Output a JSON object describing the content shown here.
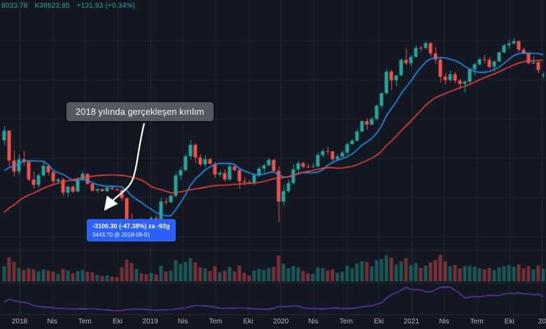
{
  "legend": {
    "open": "8033.78",
    "close": "K38623.85",
    "change": "+131.93 (+0.34%)"
  },
  "annotation": {
    "text": "2018 yılında gerçekleşen kırılım"
  },
  "tooltip": {
    "line1": "-3100.30 (-47.38%) za -92g",
    "line2": "3443.70 @ 2018-08-01"
  },
  "colors": {
    "background": "#131722",
    "candle_up": "#26a69a",
    "candle_down": "#ef5350",
    "ma_fast": "#2196f3",
    "ma_slow": "#f44336",
    "indicator": "#673ab7",
    "volume_up": "rgba(38,166,154,0.45)",
    "volume_down": "rgba(239,83,80,0.45)",
    "grid": "rgba(255,255,255,0.05)",
    "grid_year": "rgba(255,255,255,0.09)",
    "separator": "#232838",
    "axis_text": "#b2b5be",
    "legend_text": "#26a69a",
    "tooltip_bg": "#2962ff",
    "callout_bg": "#56595f"
  },
  "chart_data": {
    "type": "candlestick",
    "title": "",
    "log_scale": true,
    "price_range": [
      3000,
      85000
    ],
    "x_labels": [
      "2018",
      "Nis",
      "Tem",
      "Eki",
      "2019",
      "Nis",
      "Tem",
      "Eki",
      "2020",
      "Nis",
      "Tem",
      "Eki",
      "2021",
      "Nis",
      "Tem",
      "Eki",
      "20"
    ],
    "moving_averages": [
      {
        "name": "fast-ma",
        "window": 10,
        "color": "#2196f3"
      },
      {
        "name": "slow-ma",
        "window": 30,
        "color": "#f44336"
      }
    ],
    "indicator": {
      "name": "range-oscillator",
      "window": 5,
      "color": "#673ab7"
    },
    "pre_closes": [
      750,
      800,
      900,
      950,
      1000,
      1080,
      1200,
      1300,
      1600,
      1900,
      2300,
      2500,
      2400,
      2600,
      2800,
      3400,
      4100,
      4300,
      4200,
      4400,
      4800,
      5600,
      6400,
      7200,
      5800,
      6600,
      7300,
      8100,
      9900,
      13000
    ],
    "candles": [
      [
        13850,
        17250,
        12800,
        16100,
        55
      ],
      [
        16100,
        16300,
        9300,
        10100,
        88
      ],
      [
        10100,
        11800,
        7900,
        8500,
        72
      ],
      [
        8500,
        11100,
        8100,
        10300,
        50
      ],
      [
        10300,
        11700,
        9300,
        9900,
        42
      ],
      [
        9900,
        10000,
        7300,
        7500,
        48
      ],
      [
        7500,
        8500,
        6500,
        6900,
        45
      ],
      [
        6900,
        8200,
        6600,
        8000,
        38
      ],
      [
        8000,
        9800,
        7800,
        9300,
        44
      ],
      [
        9300,
        9400,
        8000,
        8400,
        40
      ],
      [
        8400,
        8500,
        7000,
        7300,
        36
      ],
      [
        7300,
        7700,
        7000,
        7500,
        28
      ],
      [
        7500,
        7700,
        5800,
        6100,
        46
      ],
      [
        6100,
        6800,
        5700,
        6700,
        40
      ],
      [
        6700,
        6850,
        6050,
        6200,
        30
      ],
      [
        6200,
        7750,
        6150,
        7500,
        38
      ],
      [
        7500,
        8500,
        7300,
        8200,
        42
      ],
      [
        8200,
        8250,
        6900,
        7000,
        36
      ],
      [
        7000,
        7150,
        6200,
        6300,
        34
      ],
      [
        6300,
        6550,
        6100,
        6450,
        24
      ],
      [
        6450,
        6500,
        6200,
        6250,
        20
      ],
      [
        6250,
        6800,
        6200,
        6600,
        22
      ],
      [
        6600,
        6650,
        6400,
        6450,
        18
      ],
      [
        6450,
        6550,
        6300,
        6350,
        16
      ],
      [
        6350,
        6500,
        5350,
        5600,
        52
      ],
      [
        5600,
        5650,
        3650,
        3850,
        80
      ],
      [
        3850,
        4400,
        3150,
        3250,
        68
      ],
      [
        3250,
        4000,
        3150,
        3850,
        46
      ],
      [
        3850,
        4100,
        3600,
        3700,
        30
      ],
      [
        3700,
        3750,
        3350,
        3450,
        26
      ],
      [
        3450,
        4200,
        3400,
        4100,
        32
      ],
      [
        4100,
        4300,
        3900,
        4000,
        26
      ],
      [
        4000,
        5650,
        3950,
        5300,
        58
      ],
      [
        5300,
        5600,
        5050,
        5250,
        36
      ],
      [
        5250,
        6000,
        5200,
        5800,
        40
      ],
      [
        5800,
        8350,
        5700,
        8000,
        78
      ],
      [
        8000,
        9100,
        7500,
        8700,
        64
      ],
      [
        8700,
        11200,
        8500,
        10800,
        72
      ],
      [
        10800,
        13900,
        10300,
        12900,
        85
      ],
      [
        12900,
        13200,
        9700,
        10600,
        70
      ],
      [
        10600,
        11100,
        9200,
        9500,
        52
      ],
      [
        9500,
        10950,
        9100,
        10300,
        48
      ],
      [
        10300,
        10500,
        9400,
        9600,
        38
      ],
      [
        9600,
        9900,
        7700,
        8100,
        56
      ],
      [
        8100,
        8600,
        7800,
        8300,
        34
      ],
      [
        8300,
        8800,
        7300,
        7500,
        40
      ],
      [
        7500,
        9600,
        7350,
        9200,
        54
      ],
      [
        9200,
        9550,
        8500,
        8700,
        36
      ],
      [
        8700,
        8800,
        6500,
        7300,
        58
      ],
      [
        7300,
        7700,
        6850,
        7200,
        32
      ],
      [
        7200,
        7450,
        7050,
        7150,
        22
      ],
      [
        7150,
        8200,
        6850,
        8000,
        40
      ],
      [
        8000,
        9200,
        7800,
        8900,
        46
      ],
      [
        8900,
        9600,
        8200,
        9350,
        42
      ],
      [
        9350,
        10500,
        9300,
        10200,
        50
      ],
      [
        10200,
        10300,
        8400,
        8600,
        54
      ],
      [
        8600,
        9200,
        3850,
        5300,
        95
      ],
      [
        5300,
        6900,
        5000,
        6250,
        66
      ],
      [
        6250,
        7500,
        6100,
        7100,
        48
      ],
      [
        7100,
        9500,
        6900,
        8800,
        56
      ],
      [
        8800,
        10000,
        8100,
        9700,
        52
      ],
      [
        9700,
        9900,
        8900,
        9150,
        38
      ],
      [
        9150,
        9600,
        8950,
        9100,
        30
      ],
      [
        9100,
        9700,
        9000,
        9200,
        28
      ],
      [
        9200,
        11400,
        9150,
        11000,
        52
      ],
      [
        11000,
        12100,
        10600,
        11700,
        48
      ],
      [
        11700,
        12500,
        11100,
        11650,
        40
      ],
      [
        11650,
        11750,
        9900,
        10300,
        44
      ],
      [
        10300,
        11100,
        10150,
        10750,
        32
      ],
      [
        10750,
        11750,
        10550,
        11400,
        36
      ],
      [
        11400,
        13400,
        11200,
        13050,
        58
      ],
      [
        13050,
        14100,
        12900,
        13800,
        48
      ],
      [
        13800,
        16500,
        13550,
        15900,
        66
      ],
      [
        15900,
        18900,
        15700,
        18700,
        74
      ],
      [
        18700,
        19500,
        16300,
        17700,
        72
      ],
      [
        17700,
        19900,
        17600,
        19400,
        56
      ],
      [
        19400,
        24300,
        18900,
        23800,
        78
      ],
      [
        23800,
        29300,
        22800,
        29000,
        82
      ],
      [
        29000,
        42000,
        28200,
        40600,
        96
      ],
      [
        40600,
        41900,
        30500,
        35500,
        88
      ],
      [
        35500,
        38700,
        32300,
        38300,
        62
      ],
      [
        38300,
        49700,
        38100,
        48900,
        74
      ],
      [
        48900,
        58350,
        45000,
        46300,
        86
      ],
      [
        46300,
        52600,
        44150,
        51200,
        60
      ],
      [
        51200,
        61800,
        50500,
        59000,
        68
      ],
      [
        59000,
        61200,
        55500,
        58900,
        50
      ],
      [
        58900,
        64900,
        57700,
        63500,
        58
      ],
      [
        63500,
        64500,
        51500,
        54000,
        70
      ],
      [
        54000,
        59500,
        46000,
        49000,
        78
      ],
      [
        49000,
        51000,
        34100,
        37500,
        98
      ],
      [
        37500,
        39900,
        33300,
        35600,
        74
      ],
      [
        35600,
        41300,
        34600,
        39000,
        56
      ],
      [
        39000,
        40500,
        33900,
        35300,
        60
      ],
      [
        35300,
        36400,
        31150,
        33500,
        48
      ],
      [
        33500,
        35600,
        29300,
        34700,
        56
      ],
      [
        34700,
        42600,
        33900,
        42200,
        58
      ],
      [
        42200,
        46700,
        38300,
        45600,
        54
      ],
      [
        45600,
        50500,
        44600,
        49300,
        48
      ],
      [
        49300,
        52900,
        46350,
        48800,
        44
      ],
      [
        48800,
        51000,
        42500,
        43800,
        50
      ],
      [
        43800,
        48500,
        40750,
        47700,
        42
      ],
      [
        47700,
        55750,
        47000,
        54900,
        52
      ],
      [
        54900,
        62900,
        53900,
        61300,
        56
      ],
      [
        61300,
        67000,
        58000,
        63200,
        60
      ],
      [
        63200,
        69000,
        62300,
        65500,
        54
      ],
      [
        65500,
        66300,
        55600,
        57300,
        62
      ],
      [
        57300,
        59100,
        53300,
        54000,
        48
      ],
      [
        54000,
        54900,
        45600,
        46300,
        56
      ],
      [
        46300,
        52100,
        45700,
        47100,
        44
      ],
      [
        47100,
        48200,
        39600,
        41600,
        58
      ],
      [
        38491.92,
        40100,
        36500,
        38623.85,
        46
      ]
    ]
  }
}
